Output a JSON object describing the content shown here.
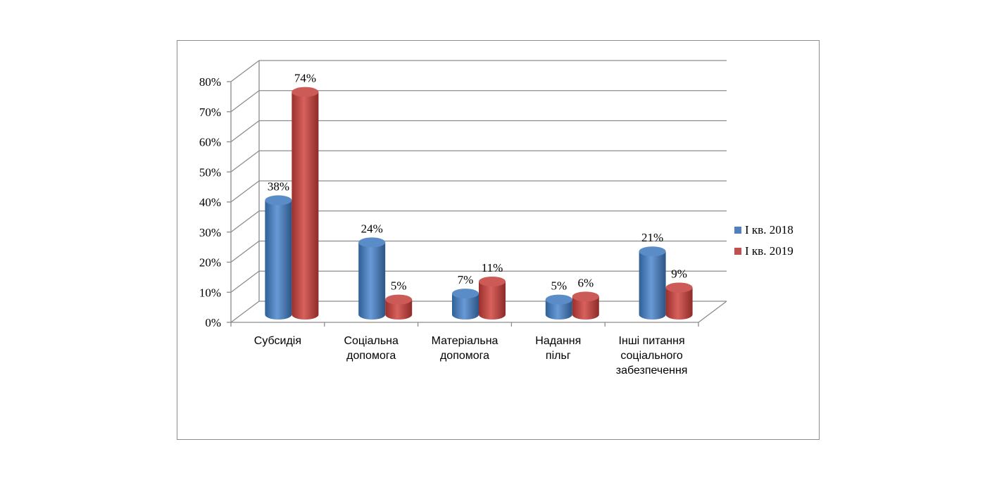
{
  "chart_data": {
    "type": "bar",
    "style": "3d-cylinder",
    "categories": [
      "Субсидія",
      "Соціальна\nдопомога",
      "Матеріальна\nдопомога",
      "Надання\nпільг",
      "Інші питання\nсоціального\nзабезпечення"
    ],
    "series": [
      {
        "name": "I кв. 2018",
        "values": [
          38,
          24,
          7,
          5,
          21
        ],
        "labels": [
          "38%",
          "24%",
          "7%",
          "5%",
          "21%"
        ],
        "color": "#4f81bd"
      },
      {
        "name": "I кв. 2019",
        "values": [
          74,
          5,
          11,
          6,
          9
        ],
        "labels": [
          "74%",
          "5%",
          "11%",
          "6%",
          "9%"
        ],
        "color": "#c0504d"
      }
    ],
    "y_ticks": [
      "0%",
      "10%",
      "20%",
      "30%",
      "40%",
      "50%",
      "60%",
      "70%",
      "80%"
    ],
    "ylim": [
      0,
      80
    ],
    "grid": true,
    "legend_position": "right"
  }
}
